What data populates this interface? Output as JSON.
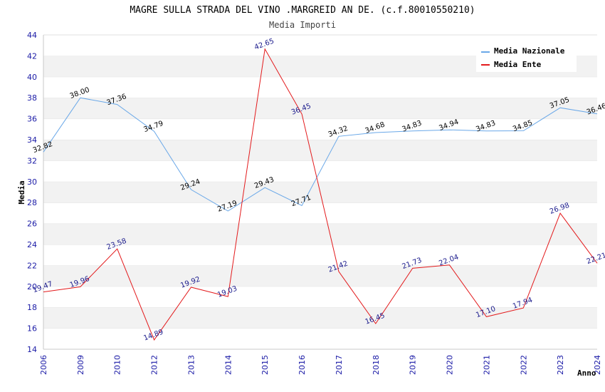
{
  "chart_data": {
    "type": "line",
    "title": "MAGRE SULLA STRADA DEL VINO .MARGREID AN DE. (c.f.80010550210)",
    "subtitle": "Media Importi",
    "xlabel": "Anno",
    "ylabel": "Media",
    "ylim": [
      14,
      44
    ],
    "yticks": [
      14,
      16,
      18,
      20,
      22,
      24,
      26,
      28,
      30,
      32,
      34,
      36,
      38,
      40,
      42,
      44
    ],
    "grid": "horizontal alternating bands",
    "legend_position": "top-right",
    "categories": [
      "2006",
      "2009",
      "2010",
      "2012",
      "2013",
      "2014",
      "2015",
      "2016",
      "2017",
      "2018",
      "2019",
      "2020",
      "2021",
      "2022",
      "2023",
      "2024"
    ],
    "series": [
      {
        "name": "Media Nazionale",
        "color": "#6aa8e8",
        "values": [
          32.82,
          38.0,
          37.36,
          34.79,
          29.24,
          27.19,
          29.43,
          27.71,
          34.32,
          34.68,
          34.83,
          34.94,
          34.83,
          34.85,
          37.05,
          36.46
        ],
        "labels": [
          "32.82",
          "38.00",
          "37.36",
          "34.79",
          "29.24",
          "27.19",
          "29.43",
          "27.71",
          "34.32",
          "34.68",
          "34.83",
          "34.94",
          "34.83",
          "34.85",
          "37.05",
          "36.46"
        ]
      },
      {
        "name": "Media Ente",
        "color": "#e31a1c",
        "values": [
          19.47,
          19.96,
          23.58,
          14.89,
          19.92,
          19.03,
          42.65,
          36.45,
          21.42,
          16.45,
          21.73,
          22.04,
          17.1,
          17.94,
          26.98,
          22.21
        ],
        "labels": [
          "19.47",
          "19.96",
          "23.58",
          "14.89",
          "19.92",
          "19.03",
          "42.65",
          "36.45",
          "21.42",
          "16.45",
          "21.73",
          "22.04",
          "17.10",
          "17.94",
          "26.98",
          "22.21"
        ]
      }
    ]
  }
}
